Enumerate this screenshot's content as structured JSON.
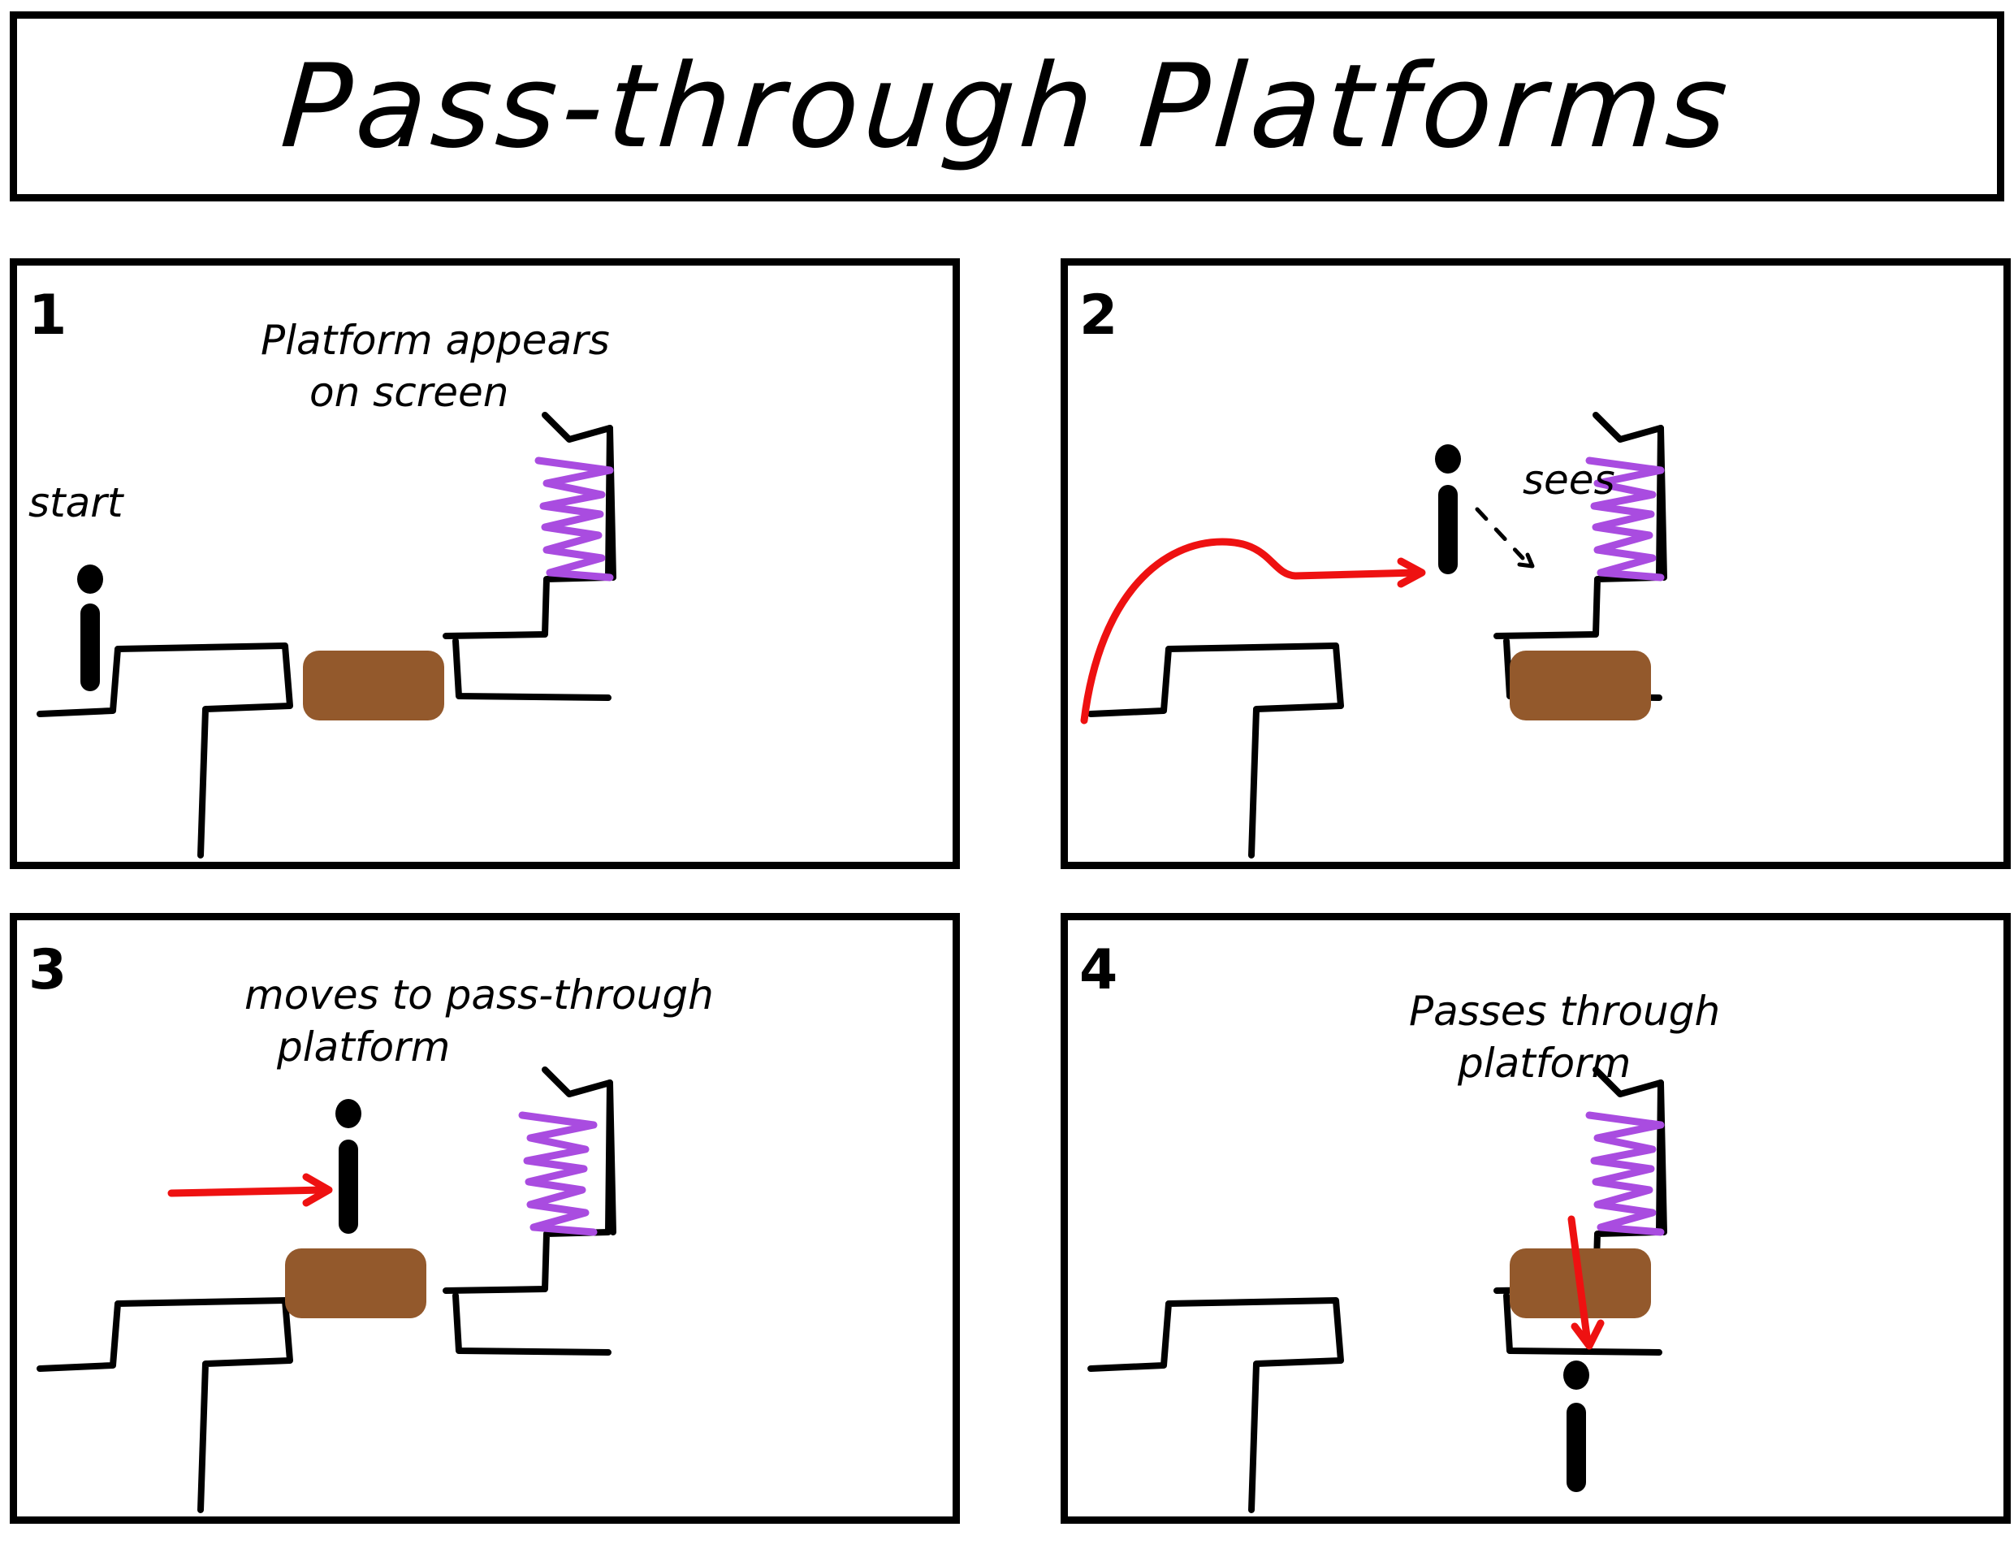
{
  "title": "Pass-through Platforms",
  "colors": {
    "outline": "#000000",
    "platform": "#93592c",
    "arrow": "#ee1111",
    "portal": "#a94ce0"
  },
  "panels": [
    {
      "number": "1",
      "label": "start",
      "caption": [
        "Platform appears",
        "on screen"
      ]
    },
    {
      "number": "2",
      "caption": [
        "sees"
      ]
    },
    {
      "number": "3",
      "caption": [
        "moves to pass-through",
        "platform"
      ]
    },
    {
      "number": "4",
      "caption": [
        "Passes through",
        "platform"
      ]
    }
  ],
  "icons": {
    "character": "stick-figure-icon",
    "portal": "zigzag-portal-icon",
    "platform": "pass-through-platform"
  }
}
